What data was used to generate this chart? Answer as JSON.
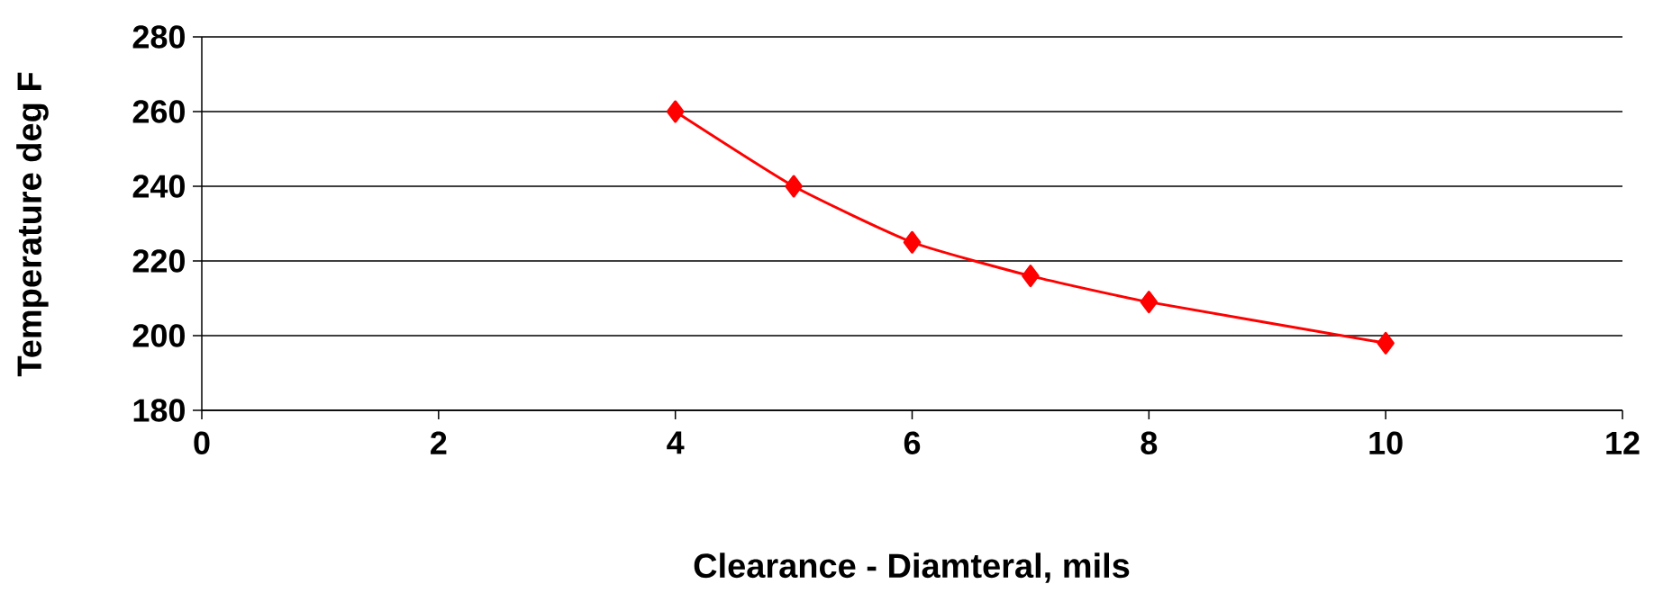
{
  "chart_data": {
    "type": "line",
    "xlabel": "Clearance - Diamteral, mils",
    "ylabel": "Temperature deg F",
    "x": [
      4,
      5,
      6,
      7,
      8,
      10
    ],
    "series": [
      {
        "color": "#ff0000",
        "values": [
          260,
          240,
          225,
          216,
          209,
          198
        ]
      }
    ],
    "xlim": [
      0,
      12
    ],
    "xticks": [
      0,
      2,
      4,
      6,
      8,
      10,
      12
    ],
    "ylim": [
      180,
      280
    ],
    "yticks": [
      180,
      200,
      220,
      240,
      260,
      280
    ],
    "grid": "y",
    "marker": "diamond",
    "line_style": "solid"
  }
}
